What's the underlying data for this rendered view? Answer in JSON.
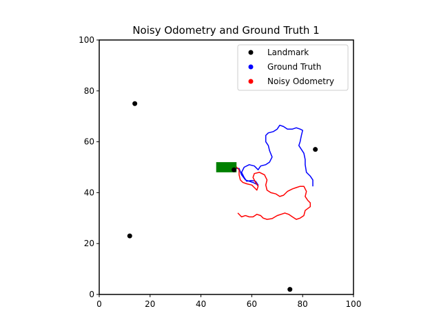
{
  "chart_data": {
    "type": "scatter",
    "title": "Noisy Odometry and Ground Truth 1",
    "xlabel": "",
    "ylabel": "",
    "xlim": [
      0,
      100
    ],
    "ylim": [
      0,
      100
    ],
    "xticks": [
      0,
      20,
      40,
      60,
      80,
      100
    ],
    "yticks": [
      0,
      20,
      40,
      60,
      80,
      100
    ],
    "grid": false,
    "legend_position": "top-right",
    "legend": [
      {
        "label": "Landmark",
        "color": "#000000"
      },
      {
        "label": "Ground Truth",
        "color": "#0000ff"
      },
      {
        "label": "Noisy Odometry",
        "color": "#ff0000"
      }
    ],
    "landmarks": {
      "name": "Landmark",
      "color": "#000000",
      "points": [
        [
          14,
          75
        ],
        [
          85,
          57
        ],
        [
          53,
          49
        ],
        [
          12,
          23
        ],
        [
          75,
          2
        ]
      ]
    },
    "ground_truth": {
      "name": "Ground Truth",
      "color": "#0000ff",
      "points": [
        [
          53,
          49.5
        ],
        [
          55,
          49.5
        ],
        [
          56,
          47
        ],
        [
          57.5,
          45
        ],
        [
          59,
          44.5
        ],
        [
          60.5,
          44
        ],
        [
          61.5,
          43.5
        ],
        [
          62.5,
          43
        ],
        [
          61.5,
          44.5
        ],
        [
          60,
          44.8
        ],
        [
          58,
          44.5
        ],
        [
          57,
          46
        ],
        [
          56,
          48
        ],
        [
          57,
          50
        ],
        [
          59,
          51
        ],
        [
          61,
          50.5
        ],
        [
          62.5,
          49
        ],
        [
          63.5,
          50.5
        ],
        [
          65.5,
          51
        ],
        [
          67,
          52
        ],
        [
          68,
          54
        ],
        [
          67,
          56.5
        ],
        [
          66.5,
          58.5
        ],
        [
          65.5,
          60
        ],
        [
          65.5,
          62.5
        ],
        [
          66.5,
          63.5
        ],
        [
          68.5,
          64
        ],
        [
          70,
          65
        ],
        [
          71,
          66.5
        ],
        [
          72.5,
          66
        ],
        [
          74,
          65
        ],
        [
          76,
          65
        ],
        [
          77.5,
          65.5
        ],
        [
          79,
          65
        ],
        [
          80,
          64.5
        ],
        [
          79.5,
          62.5
        ],
        [
          79,
          60
        ],
        [
          78.5,
          58.5
        ],
        [
          79.5,
          57
        ],
        [
          80.5,
          55.5
        ],
        [
          81,
          53
        ],
        [
          81,
          51
        ],
        [
          81.5,
          48
        ],
        [
          83,
          46.5
        ],
        [
          84,
          45
        ],
        [
          84,
          42.5
        ]
      ]
    },
    "noisy_odometry": {
      "name": "Noisy Odometry",
      "color": "#ff0000",
      "points": [
        [
          50.5,
          50.5
        ],
        [
          53,
          51
        ],
        [
          55,
          49
        ],
        [
          55,
          47
        ],
        [
          55.5,
          45
        ],
        [
          56.5,
          44
        ],
        [
          58,
          43.5
        ],
        [
          60,
          43
        ],
        [
          61,
          42
        ],
        [
          62,
          41
        ],
        [
          62.5,
          42.5
        ],
        [
          61.5,
          44
        ],
        [
          60.5,
          46
        ],
        [
          61,
          47.5
        ],
        [
          63,
          48
        ],
        [
          65,
          47
        ],
        [
          66,
          45
        ],
        [
          65.5,
          43
        ],
        [
          66,
          41
        ],
        [
          67.5,
          40
        ],
        [
          69.5,
          39.5
        ],
        [
          71,
          38.5
        ],
        [
          72.5,
          39
        ],
        [
          74,
          40.5
        ],
        [
          76,
          41.5
        ],
        [
          77.5,
          42
        ],
        [
          79,
          42.5
        ],
        [
          80.5,
          42.5
        ],
        [
          81.5,
          40.5
        ],
        [
          81,
          38.5
        ],
        [
          82,
          37
        ],
        [
          83,
          36
        ],
        [
          83,
          34.5
        ],
        [
          81,
          33
        ],
        [
          80.5,
          31
        ],
        [
          79,
          30
        ],
        [
          77.5,
          29.5
        ],
        [
          76,
          30.5
        ],
        [
          74.5,
          31.5
        ],
        [
          73,
          32
        ],
        [
          71.5,
          31.5
        ],
        [
          70,
          31
        ],
        [
          68,
          29.8
        ],
        [
          66,
          29.5
        ],
        [
          64.5,
          30
        ],
        [
          63.5,
          31
        ],
        [
          62,
          31.5
        ],
        [
          60.5,
          30.5
        ],
        [
          59,
          30.5
        ],
        [
          57.5,
          31
        ],
        [
          56,
          30.5
        ],
        [
          54.5,
          32
        ]
      ]
    },
    "start_marker": {
      "color": "#008000",
      "x_range": [
        46,
        54
      ],
      "y_range": [
        48,
        52
      ]
    }
  }
}
